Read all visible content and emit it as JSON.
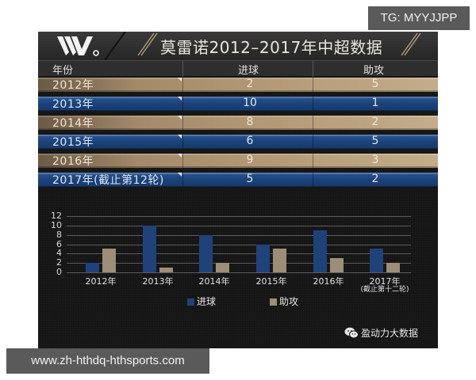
{
  "header": {
    "logo": "W-logo",
    "title": "莫雷诺2012–2017年中超数据"
  },
  "table": {
    "columns": [
      "年份",
      "进球",
      "助攻"
    ],
    "rows": [
      {
        "year": "2012年",
        "goals": "2",
        "assists": "5",
        "style": "gold"
      },
      {
        "year": "2013年",
        "goals": "10",
        "assists": "1",
        "style": "blue"
      },
      {
        "year": "2014年",
        "goals": "8",
        "assists": "2",
        "style": "gold"
      },
      {
        "year": "2015年",
        "goals": "6",
        "assists": "5",
        "style": "blue"
      },
      {
        "year": "2016年",
        "goals": "9",
        "assists": "3",
        "style": "gold"
      },
      {
        "year": "2017年(截止第12轮)",
        "goals": "5",
        "assists": "2",
        "style": "blue"
      }
    ]
  },
  "chart_data": {
    "type": "bar",
    "title": "莫雷诺2012–2017年中超数据",
    "categories": [
      "2012年",
      "2013年",
      "2014年",
      "2015年",
      "2016年",
      "2017年(截止第十二轮)"
    ],
    "category_labels": [
      {
        "main": "2012年",
        "sub": ""
      },
      {
        "main": "2013年",
        "sub": ""
      },
      {
        "main": "2014年",
        "sub": ""
      },
      {
        "main": "2015年",
        "sub": ""
      },
      {
        "main": "2016年",
        "sub": ""
      },
      {
        "main": "2017年",
        "sub": "(截止第十二轮)"
      }
    ],
    "series": [
      {
        "name": "进球",
        "color": "#1f427b",
        "values": [
          2,
          10,
          8,
          6,
          9,
          5
        ]
      },
      {
        "name": "助攻",
        "color": "#9c8e77",
        "values": [
          5,
          1,
          2,
          5,
          3,
          2
        ]
      }
    ],
    "yticks": [
      "0",
      "2",
      "4",
      "6",
      "8",
      "10",
      "12"
    ],
    "ylim": [
      0,
      12
    ],
    "xlabel": "",
    "ylabel": "",
    "grid": true,
    "legend_position": "bottom"
  },
  "legend": {
    "goals": "进球",
    "assists": "助攻"
  },
  "source": {
    "icon": "wechat-icon",
    "label": "盈动力大数据"
  },
  "watermarks": {
    "tg": "TG: MYYJJPP",
    "url": "www.zh-hthdq-hthsports.com"
  },
  "colors": {
    "gold_row": "#b59a76",
    "blue_row": "#1b427a",
    "background": "#151515"
  }
}
